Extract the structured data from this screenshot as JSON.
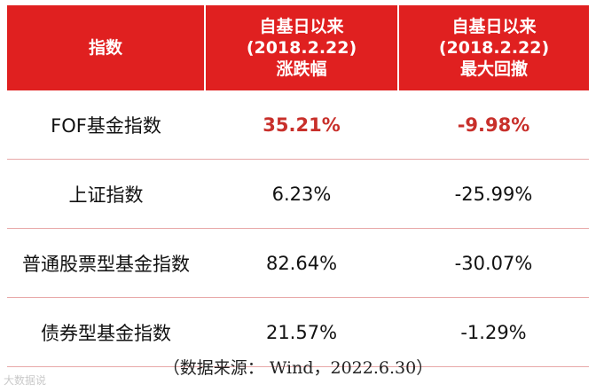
{
  "table": {
    "headers": [
      {
        "lines": [
          "指数"
        ]
      },
      {
        "lines": [
          "自基日以来",
          "(2018.2.22)",
          "涨跌幅"
        ]
      },
      {
        "lines": [
          "自基日以来",
          "(2018.2.22)",
          "最大回撤"
        ]
      }
    ],
    "rows": [
      {
        "name": "FOF基金指数",
        "return": "35.21%",
        "drawdown": "-9.98%",
        "highlight": true
      },
      {
        "name": "上证指数",
        "return": "6.23%",
        "drawdown": "-25.99%",
        "highlight": false
      },
      {
        "name": "普通股票型基金指数",
        "return": "82.64%",
        "drawdown": "-30.07%",
        "highlight": false
      },
      {
        "name": "债券型基金指数",
        "return": "21.57%",
        "drawdown": "-1.29%",
        "highlight": false
      }
    ]
  },
  "source": "（数据来源： Wind，2022.6.30）",
  "watermark": "大数据说",
  "colors": {
    "header_bg": "#e02020",
    "highlight": "#c8302b"
  }
}
